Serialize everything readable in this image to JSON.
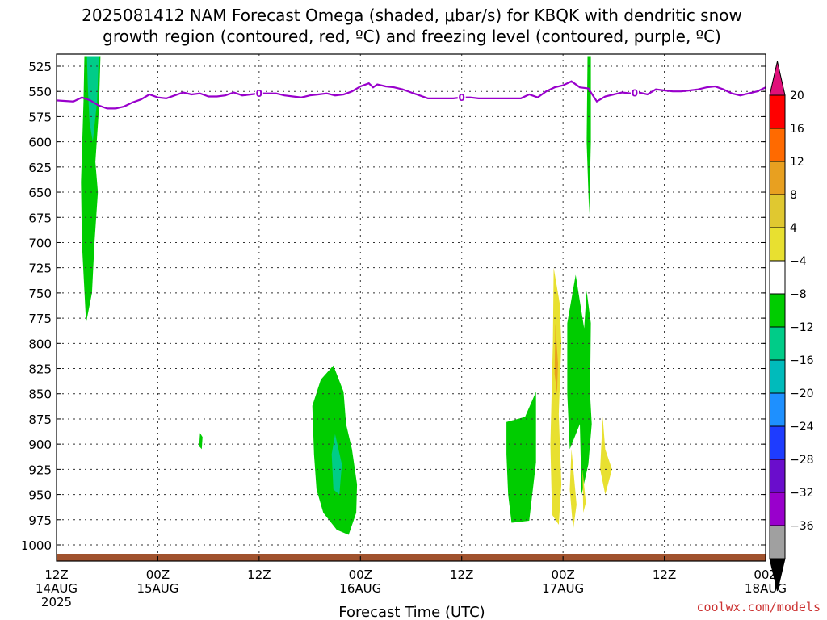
{
  "title_line1": "2025081412 NAM Forecast Omega (shaded, μbar/s) for KBQK with dendritic snow",
  "title_line2": "growth region (contoured, red, ºC) and freezing level (contoured, purple, ºC)",
  "credit": "coolwx.com/models",
  "colors": {
    "freezing_level": "#9900cc",
    "ground": "#a0522d",
    "grid": "#333333"
  },
  "chart_data": {
    "type": "heatmap",
    "xlabel": "Forecast Time (UTC)",
    "ylabel": "",
    "x_range_hours": [
      0,
      84
    ],
    "y_range_mb": [
      515,
      1020
    ],
    "y_ticks": [
      525,
      550,
      575,
      600,
      625,
      650,
      675,
      700,
      725,
      750,
      775,
      800,
      825,
      850,
      875,
      900,
      925,
      950,
      975,
      1000
    ],
    "x_ticks": [
      {
        "hour": 0,
        "line1": "12Z",
        "line2": "14AUG",
        "line3": "2025"
      },
      {
        "hour": 12,
        "line1": "00Z",
        "line2": "15AUG",
        "line3": ""
      },
      {
        "hour": 24,
        "line1": "12Z",
        "line2": "",
        "line3": ""
      },
      {
        "hour": 36,
        "line1": "00Z",
        "line2": "16AUG",
        "line3": ""
      },
      {
        "hour": 48,
        "line1": "12Z",
        "line2": "",
        "line3": ""
      },
      {
        "hour": 60,
        "line1": "00Z",
        "line2": "17AUG",
        "line3": ""
      },
      {
        "hour": 72,
        "line1": "12Z",
        "line2": "",
        "line3": ""
      },
      {
        "hour": 84,
        "line1": "00Z",
        "line2": "18AUG",
        "line3": ""
      }
    ],
    "grid": true,
    "colorbar": {
      "labels": [
        "20",
        "16",
        "12",
        "8",
        "4",
        "−4",
        "−8",
        "−12",
        "−16",
        "−20",
        "−24",
        "−28",
        "−32",
        "−36"
      ],
      "bins_top_to_bottom": [
        "#ff0000",
        "#ff6a00",
        "#e8a020",
        "#e0c830",
        "#e8e030",
        "#ffffff",
        "#00cc00",
        "#00cc88",
        "#00bbbb",
        "#1e90ff",
        "#1e3cff",
        "#6a0dcc",
        "#9900cc",
        "#a0a0a0"
      ],
      "top_arrow_color": "#e0107a",
      "bottom_arrow_color": "#000000"
    },
    "freezing_level": {
      "label": "0",
      "label_hours": [
        24,
        48,
        68.5
      ],
      "points": [
        [
          0,
          559
        ],
        [
          2,
          560
        ],
        [
          3,
          556
        ],
        [
          4,
          559
        ],
        [
          5,
          564
        ],
        [
          6,
          567
        ],
        [
          7,
          567
        ],
        [
          8,
          565
        ],
        [
          9,
          561
        ],
        [
          10,
          558
        ],
        [
          11,
          553
        ],
        [
          12,
          556
        ],
        [
          13,
          557
        ],
        [
          14,
          554
        ],
        [
          15,
          551
        ],
        [
          16,
          553
        ],
        [
          17,
          552
        ],
        [
          18,
          555
        ],
        [
          19,
          555
        ],
        [
          20,
          554
        ],
        [
          21,
          551
        ],
        [
          22,
          554
        ],
        [
          23,
          553
        ],
        [
          24,
          552
        ],
        [
          25,
          552
        ],
        [
          26,
          552
        ],
        [
          27,
          554
        ],
        [
          28,
          555
        ],
        [
          29,
          556
        ],
        [
          30,
          554
        ],
        [
          31,
          553
        ],
        [
          32,
          552
        ],
        [
          33,
          554
        ],
        [
          34,
          553
        ],
        [
          35,
          550
        ],
        [
          36,
          545
        ],
        [
          37,
          542
        ],
        [
          37.5,
          546
        ],
        [
          38,
          543
        ],
        [
          39,
          545
        ],
        [
          40,
          546
        ],
        [
          41,
          548
        ],
        [
          42,
          551
        ],
        [
          43,
          554
        ],
        [
          44,
          557
        ],
        [
          45,
          557
        ],
        [
          46,
          557
        ],
        [
          47,
          557
        ],
        [
          48,
          556
        ],
        [
          49,
          556
        ],
        [
          50,
          557
        ],
        [
          51,
          557
        ],
        [
          52,
          557
        ],
        [
          53,
          557
        ],
        [
          54,
          557
        ],
        [
          55,
          557
        ],
        [
          56,
          553
        ],
        [
          57,
          556
        ],
        [
          58,
          550
        ],
        [
          59,
          546
        ],
        [
          60,
          544
        ],
        [
          61,
          540
        ],
        [
          62,
          546
        ],
        [
          63,
          547
        ],
        [
          64,
          560
        ],
        [
          65,
          555
        ],
        [
          66,
          553
        ],
        [
          67,
          551
        ],
        [
          68,
          552
        ],
        [
          69,
          551
        ],
        [
          70,
          553
        ],
        [
          71,
          548
        ],
        [
          72,
          549
        ],
        [
          73,
          550
        ],
        [
          74,
          550
        ],
        [
          75,
          549
        ],
        [
          76,
          548
        ],
        [
          77,
          546
        ],
        [
          78,
          545
        ],
        [
          79,
          548
        ],
        [
          80,
          552
        ],
        [
          81,
          554
        ],
        [
          82,
          552
        ],
        [
          83,
          550
        ],
        [
          84,
          546
        ]
      ]
    },
    "omega_regions": [
      {
        "level": -8,
        "color": "#00cc00",
        "points": [
          [
            3.3,
            515
          ],
          [
            5.2,
            515
          ],
          [
            5.0,
            570
          ],
          [
            4.6,
            620
          ],
          [
            4.9,
            650
          ],
          [
            4.5,
            700
          ],
          [
            4.2,
            750
          ],
          [
            3.5,
            780
          ],
          [
            3.0,
            700
          ],
          [
            2.9,
            640
          ],
          [
            3.2,
            560
          ]
        ]
      },
      {
        "level": -12,
        "color": "#00cc88",
        "points": [
          [
            3.6,
            515
          ],
          [
            5.0,
            515
          ],
          [
            4.8,
            560
          ],
          [
            4.3,
            600
          ],
          [
            3.9,
            580
          ],
          [
            3.7,
            545
          ]
        ]
      },
      {
        "level": -8,
        "color": "#00cc00",
        "points": [
          [
            17.0,
            889
          ],
          [
            17.3,
            893
          ],
          [
            17.2,
            905
          ],
          [
            16.9,
            902
          ]
        ]
      },
      {
        "level": -8,
        "color": "#00cc00",
        "points": [
          [
            30.3,
            862
          ],
          [
            31.3,
            836
          ],
          [
            32.8,
            822
          ],
          [
            34.0,
            848
          ],
          [
            34.3,
            880
          ],
          [
            35.0,
            905
          ],
          [
            35.6,
            940
          ],
          [
            35.5,
            968
          ],
          [
            34.6,
            990
          ],
          [
            33.2,
            985
          ],
          [
            31.6,
            968
          ],
          [
            30.8,
            945
          ],
          [
            30.5,
            910
          ]
        ]
      },
      {
        "level": -12,
        "color": "#00cc88",
        "points": [
          [
            33.0,
            890
          ],
          [
            33.8,
            920
          ],
          [
            33.5,
            950
          ],
          [
            32.8,
            945
          ],
          [
            32.6,
            910
          ]
        ]
      },
      {
        "level": -8,
        "color": "#00cc00",
        "points": [
          [
            53.3,
            878
          ],
          [
            55.5,
            873
          ],
          [
            56.8,
            848
          ],
          [
            56.8,
            918
          ],
          [
            56.0,
            976
          ],
          [
            53.9,
            978
          ],
          [
            53.5,
            950
          ],
          [
            53.3,
            910
          ]
        ]
      },
      {
        "level": 4,
        "color": "#e8e030",
        "points": [
          [
            58.9,
            725
          ],
          [
            59.6,
            760
          ],
          [
            59.8,
            800
          ],
          [
            59.5,
            870
          ],
          [
            59.8,
            940
          ],
          [
            59.5,
            980
          ],
          [
            58.7,
            970
          ],
          [
            58.5,
            900
          ],
          [
            58.8,
            800
          ]
        ]
      },
      {
        "level": 8,
        "color": "#e8a020",
        "points": [
          [
            59.1,
            780
          ],
          [
            59.4,
            820
          ],
          [
            59.3,
            850
          ],
          [
            59.0,
            830
          ]
        ]
      },
      {
        "level": -8,
        "color": "#00cc00",
        "points": [
          [
            60.5,
            780
          ],
          [
            61.5,
            732
          ],
          [
            62.5,
            785
          ],
          [
            62.8,
            748
          ],
          [
            63.3,
            780
          ],
          [
            63.2,
            850
          ],
          [
            63.4,
            880
          ],
          [
            63.0,
            920
          ],
          [
            62.2,
            950
          ],
          [
            62.0,
            880
          ],
          [
            60.8,
            905
          ],
          [
            60.5,
            850
          ]
        ]
      },
      {
        "level": -8,
        "color": "#00cc00",
        "points": [
          [
            62.9,
            515
          ],
          [
            63.3,
            515
          ],
          [
            63.3,
            600
          ],
          [
            63.1,
            672
          ],
          [
            62.8,
            600
          ]
        ]
      },
      {
        "level": 4,
        "color": "#e8e030",
        "points": [
          [
            61.0,
            905
          ],
          [
            61.6,
            960
          ],
          [
            61.2,
            985
          ],
          [
            60.8,
            945
          ]
        ]
      },
      {
        "level": 4,
        "color": "#e8e030",
        "points": [
          [
            62.3,
            925
          ],
          [
            62.7,
            958
          ],
          [
            62.4,
            968
          ]
        ]
      },
      {
        "level": 4,
        "color": "#e8e030",
        "points": [
          [
            64.7,
            873
          ],
          [
            65.0,
            905
          ],
          [
            65.8,
            925
          ],
          [
            65.0,
            950
          ],
          [
            64.4,
            925
          ]
        ]
      }
    ]
  }
}
